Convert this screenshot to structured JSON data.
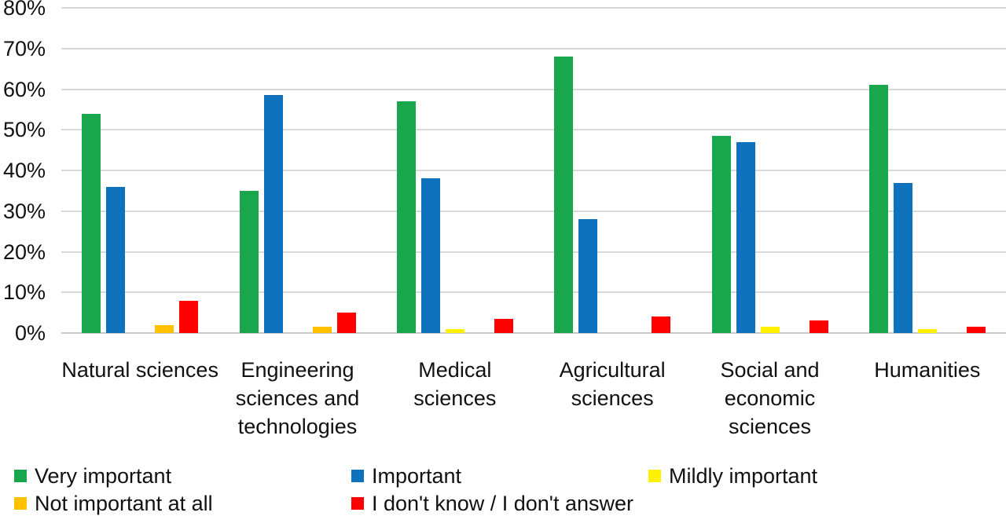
{
  "chart_data": {
    "type": "bar",
    "title": "",
    "xlabel": "",
    "ylabel": "",
    "ylim": [
      0,
      80
    ],
    "grid": true,
    "legend_position": "bottom",
    "y_ticks": [
      {
        "value": 0,
        "label": "0%"
      },
      {
        "value": 10,
        "label": "10%"
      },
      {
        "value": 20,
        "label": "20%"
      },
      {
        "value": 30,
        "label": "30%"
      },
      {
        "value": 40,
        "label": "40%"
      },
      {
        "value": 50,
        "label": "50%"
      },
      {
        "value": 60,
        "label": "60%"
      },
      {
        "value": 70,
        "label": "70%"
      },
      {
        "value": 80,
        "label": "80%"
      }
    ],
    "categories": [
      {
        "label": "Natural sciences",
        "lines": [
          "Natural sciences"
        ]
      },
      {
        "label": "Engineering sciences and technologies",
        "lines": [
          "Engineering",
          "sciences and",
          "technologies"
        ]
      },
      {
        "label": "Medical sciences",
        "lines": [
          "Medical",
          "sciences"
        ]
      },
      {
        "label": "Agricultural sciences",
        "lines": [
          "Agricultural",
          "sciences"
        ]
      },
      {
        "label": "Social and economic sciences",
        "lines": [
          "Social and",
          "economic",
          "sciences"
        ]
      },
      {
        "label": "Humanities",
        "lines": [
          "Humanities"
        ]
      }
    ],
    "series": [
      {
        "name": "Very important",
        "color": "#1AA64D",
        "values": [
          54,
          35,
          57,
          68,
          48.5,
          61
        ]
      },
      {
        "name": "Important",
        "color": "#0E73BC",
        "values": [
          36,
          58.5,
          38,
          28,
          47,
          37
        ]
      },
      {
        "name": "Mildly important",
        "color": "#FFF100",
        "values": [
          0,
          0,
          1,
          0,
          1.5,
          1
        ]
      },
      {
        "name": "Not important at all",
        "color": "#FFC000",
        "values": [
          2,
          1.5,
          0,
          0,
          0,
          0
        ]
      },
      {
        "name": "I don't know / I don't answer",
        "color": "#FF0000",
        "values": [
          8,
          5,
          3.5,
          4,
          3,
          1.5
        ]
      }
    ]
  },
  "colors": {
    "gridline": "#D9D9D9",
    "axis_line": "#C8C8C8",
    "text": "#111111"
  }
}
